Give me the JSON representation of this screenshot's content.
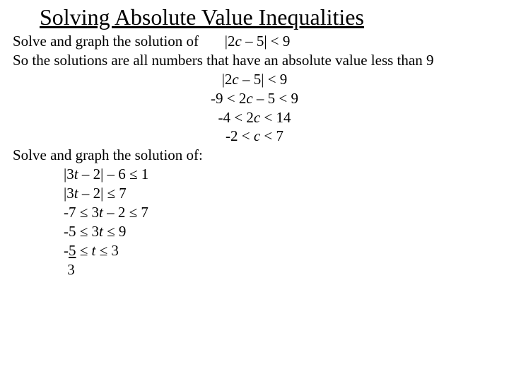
{
  "title": "Solving Absolute Value Inequalities",
  "p1_a": "Solve and graph the solution of       |2",
  "p1_b": " – 5| < 9",
  "p2": "So the solutions are all numbers that have an absolute value less than 9",
  "c1_a": "|2",
  "c1_b": " – 5| < 9",
  "c2_a": "-9 < 2",
  "c2_b": " – 5 < 9",
  "c3_a": "-4 < 2",
  "c3_b": " < 14",
  "c4_a": "-2 < ",
  "c4_b": " < 7",
  "p3": "Solve and graph the solution of:",
  "l1_a": "|3",
  "l1_b": " – 2| – 6 ≤ 1",
  "l2_a": "|3",
  "l2_b": " – 2| ≤ 7",
  "l3_a": "-7 ≤ 3",
  "l3_b": " – 2 ≤ 7",
  "l4_a": "-5 ≤ 3",
  "l4_b": " ≤ 9",
  "l5_a": "-",
  "l5_b": " ≤ ",
  "l5_c": " ≤ 3",
  "l5_frac_top": "5",
  "l6": " 3",
  "var_c": "c",
  "var_t": "t"
}
